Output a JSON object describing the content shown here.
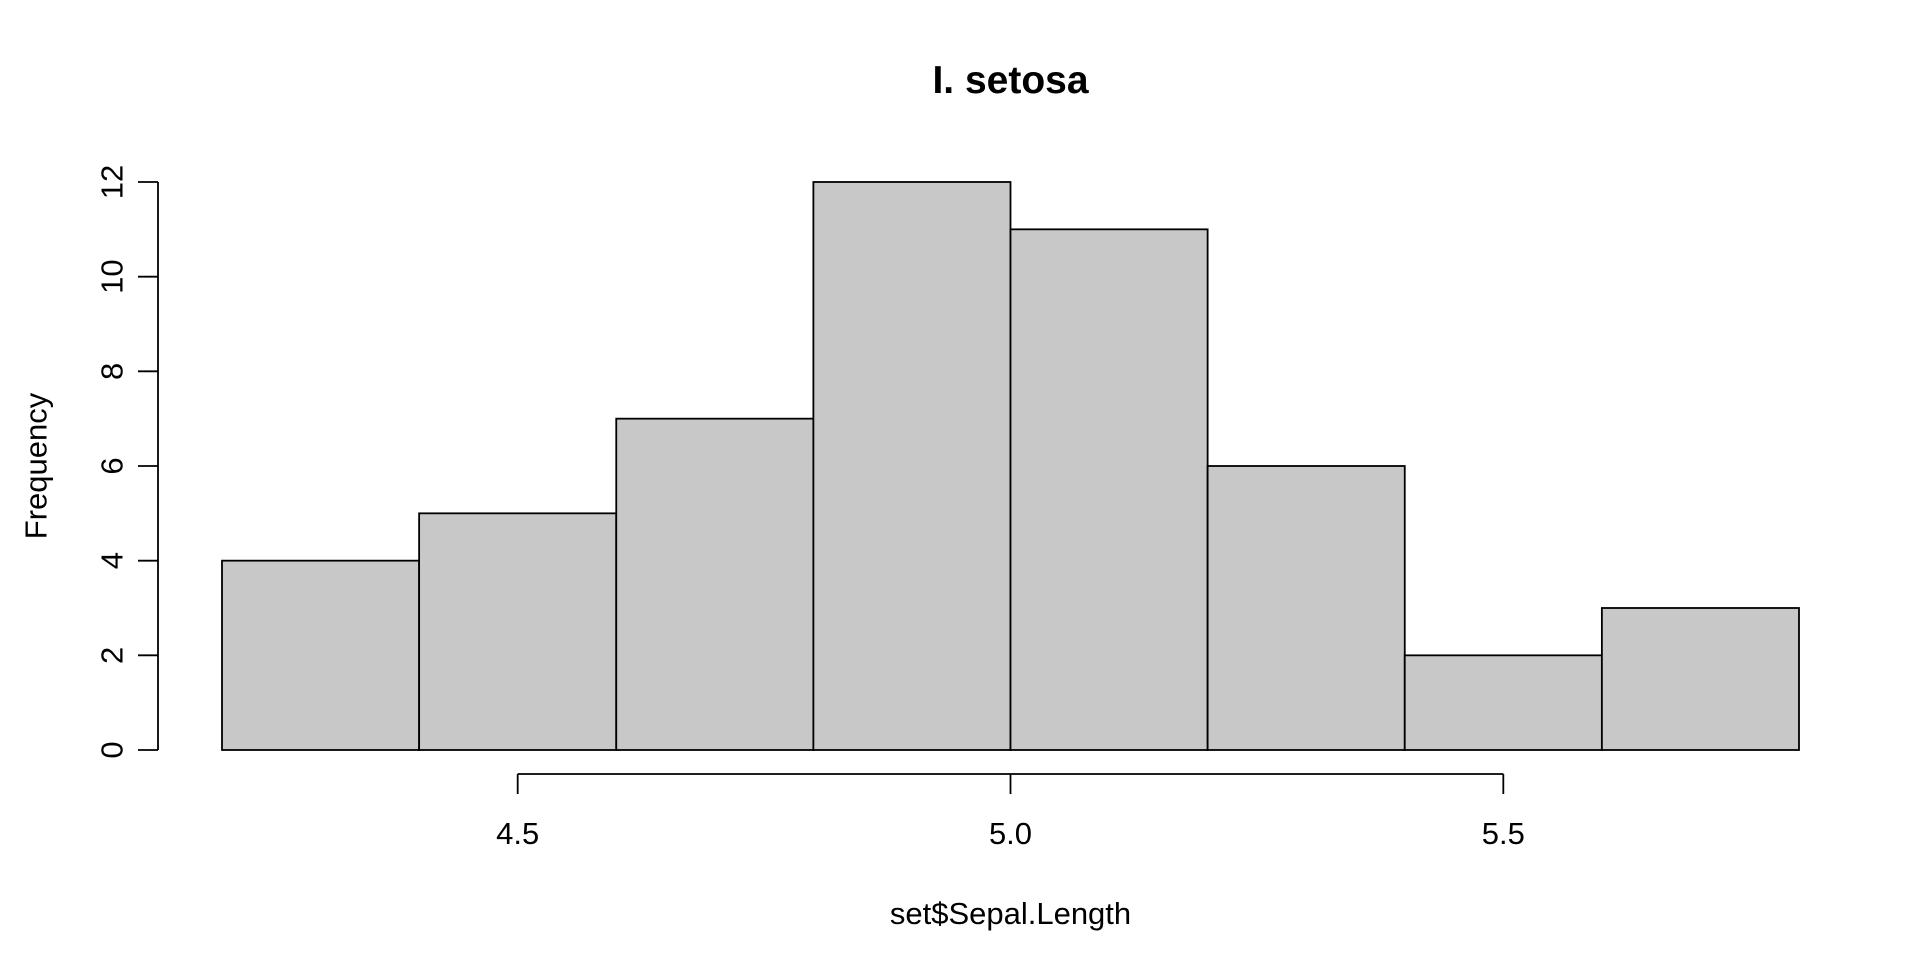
{
  "chart_data": {
    "type": "bar",
    "title": "I. setosa",
    "xlabel": "set$Sepal.Length",
    "ylabel": "Frequency",
    "bins": [
      {
        "from": 4.2,
        "to": 4.4,
        "count": 4
      },
      {
        "from": 4.4,
        "to": 4.6,
        "count": 5
      },
      {
        "from": 4.6,
        "to": 4.8,
        "count": 7
      },
      {
        "from": 4.8,
        "to": 5.0,
        "count": 12
      },
      {
        "from": 5.0,
        "to": 5.2,
        "count": 11
      },
      {
        "from": 5.2,
        "to": 5.4,
        "count": 6
      },
      {
        "from": 5.4,
        "to": 5.6,
        "count": 2
      },
      {
        "from": 5.6,
        "to": 5.8,
        "count": 3
      }
    ],
    "xlim": [
      4.2,
      5.8
    ],
    "ylim": [
      0,
      12
    ],
    "x_ticks": [
      {
        "value": 4.5,
        "label": "4.5"
      },
      {
        "value": 5.0,
        "label": "5.0"
      },
      {
        "value": 5.5,
        "label": "5.5"
      }
    ],
    "y_ticks": [
      {
        "value": 0,
        "label": "0"
      },
      {
        "value": 2,
        "label": "2"
      },
      {
        "value": 4,
        "label": "4"
      },
      {
        "value": 6,
        "label": "6"
      },
      {
        "value": 8,
        "label": "8"
      },
      {
        "value": 10,
        "label": "10"
      },
      {
        "value": 12,
        "label": "12"
      }
    ],
    "grid": false,
    "bar_fill": "#c8c8c8",
    "bar_stroke": "#000000"
  }
}
